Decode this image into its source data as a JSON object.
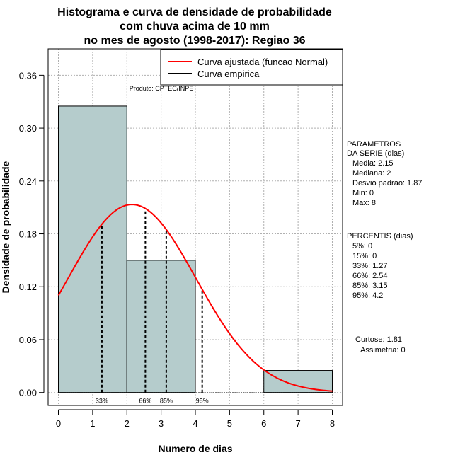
{
  "chart_data": {
    "type": "bar",
    "title": [
      "Histograma e curva de densidade de probabilidade",
      "com chuva acima de 10 mm",
      "no mes de agosto (1998-2017): Regiao 36"
    ],
    "xlabel": "Numero de dias",
    "ylabel": "Densidade de probabilidade",
    "xlim": [
      -0.3,
      8.3
    ],
    "ylim": [
      -0.0147,
      0.39
    ],
    "x_ticks": [
      0,
      1,
      2,
      3,
      4,
      5,
      6,
      7,
      8
    ],
    "x_tick_labels": [
      "0",
      "1",
      "2",
      "3",
      "4",
      "5",
      "6",
      "7",
      "8"
    ],
    "y_ticks": [
      0.0,
      0.06,
      0.12,
      0.18,
      0.24,
      0.3,
      0.36
    ],
    "y_tick_labels": [
      "0.00",
      "0.06",
      "0.12",
      "0.18",
      "0.24",
      "0.30",
      "0.36"
    ],
    "histogram": [
      {
        "x0": 0,
        "x1": 2,
        "value": 0.325
      },
      {
        "x0": 2,
        "x1": 4,
        "value": 0.15
      },
      {
        "x0": 4,
        "x1": 6,
        "value": 0.0
      },
      {
        "x0": 6,
        "x1": 8,
        "value": 0.025
      }
    ],
    "normal_curve": {
      "mean": 2.15,
      "sd": 1.87,
      "x_from": 0,
      "x_to": 8,
      "color": "#ff0000"
    },
    "percentile_lines": [
      {
        "x": 1.27,
        "label": "33%"
      },
      {
        "x": 2.54,
        "label": "66%"
      },
      {
        "x": 3.15,
        "label": "85%"
      },
      {
        "x": 4.2,
        "label": "95%"
      }
    ],
    "legend": {
      "position": "top-right",
      "entries": [
        {
          "label": "Curva ajustada (funcao Normal)",
          "color": "#ff0000"
        },
        {
          "label": "Curva empirica",
          "color": "#000000"
        }
      ]
    },
    "credit": "Produto: CPTEC/INPE",
    "grid": true,
    "bar_color": "#b5cccc"
  },
  "stats": {
    "params_title": [
      "PARAMETROS",
      "DA SERIE (dias)"
    ],
    "params": [
      "Media: 2.15",
      "Mediana: 2",
      "Desvio padrao: 1.87",
      "Min: 0",
      "Max: 8"
    ],
    "percentis_title": "PERCENTIS (dias)",
    "percentis": [
      "5%: 0",
      "15%: 0",
      "33%: 1.27",
      "66%: 2.54",
      "85%: 3.15",
      "95%: 4.2"
    ],
    "curtose": "Curtose: 1.81",
    "assimetria": "Assimetria: 0"
  }
}
